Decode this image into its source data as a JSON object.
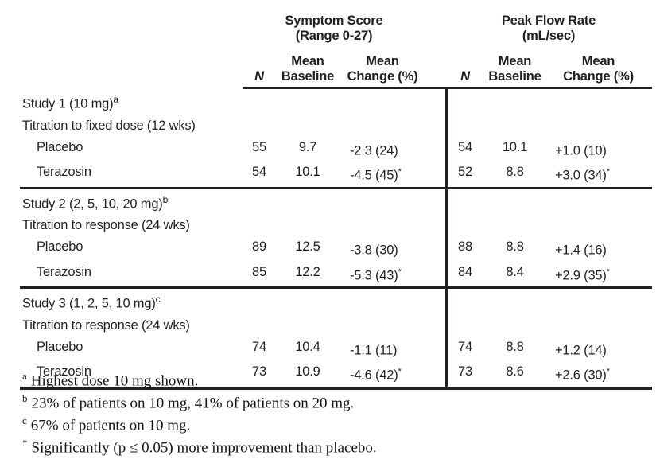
{
  "table": {
    "groups": [
      {
        "line1": "Symptom Score",
        "line2": "(Range 0-27)"
      },
      {
        "line1": "Peak Flow Rate",
        "line2": "(mL/sec)"
      }
    ],
    "headers": {
      "n": "N",
      "mean": "Mean",
      "baseline": "Baseline",
      "change": "Change (%)"
    },
    "sections": [
      {
        "title": "Study 1 (10 mg)",
        "sup": "a",
        "subtitle": "Titration to fixed dose (12 wks)",
        "rows": [
          {
            "label": "Placebo",
            "ss_n": "55",
            "ss_base": "9.7",
            "ss_chg": "-2.3 (24)",
            "ss_star": "",
            "pf_n": "54",
            "pf_base": "10.1",
            "pf_chg": "+1.0 (10)",
            "pf_star": ""
          },
          {
            "label": "Terazosin",
            "ss_n": "54",
            "ss_base": "10.1",
            "ss_chg": "-4.5 (45)",
            "ss_star": "*",
            "pf_n": "52",
            "pf_base": "8.8",
            "pf_chg": "+3.0 (34)",
            "pf_star": "*"
          }
        ]
      },
      {
        "title": "Study 2 (2, 5, 10, 20 mg)",
        "sup": "b",
        "subtitle": "Titration to response (24 wks)",
        "rows": [
          {
            "label": "Placebo",
            "ss_n": "89",
            "ss_base": "12.5",
            "ss_chg": "-3.8 (30)",
            "ss_star": "",
            "pf_n": "88",
            "pf_base": "8.8",
            "pf_chg": "+1.4 (16)",
            "pf_star": ""
          },
          {
            "label": "Terazosin",
            "ss_n": "85",
            "ss_base": "12.2",
            "ss_chg": "-5.3 (43)",
            "ss_star": "*",
            "pf_n": "84",
            "pf_base": "8.4",
            "pf_chg": "+2.9 (35)",
            "pf_star": "*"
          }
        ]
      },
      {
        "title": "Study 3 (1, 2, 5, 10 mg)",
        "sup": "c",
        "subtitle": "Titration to response (24 wks)",
        "rows": [
          {
            "label": "Placebo",
            "ss_n": "74",
            "ss_base": "10.4",
            "ss_chg": "-1.1 (11)",
            "ss_star": "",
            "pf_n": "74",
            "pf_base": "8.8",
            "pf_chg": "+1.2 (14)",
            "pf_star": ""
          },
          {
            "label": "Terazosin",
            "ss_n": "73",
            "ss_base": "10.9",
            "ss_chg": "-4.6 (42)",
            "ss_star": "*",
            "pf_n": "73",
            "pf_base": "8.6",
            "pf_chg": "+2.6 (30)",
            "pf_star": "*"
          }
        ]
      }
    ]
  },
  "footnotes": [
    {
      "sup": "a",
      "text": "Highest dose 10 mg shown."
    },
    {
      "sup": "b",
      "text": "23% of patients on 10 mg, 41% of patients on 20 mg."
    },
    {
      "sup": "c",
      "text": "67% of patients on 10 mg."
    },
    {
      "sup": "*",
      "text": "Significantly (p ≤ 0.05) more improvement than placebo."
    }
  ],
  "colors": {
    "ink": "#231f20",
    "background": "#ffffff"
  }
}
